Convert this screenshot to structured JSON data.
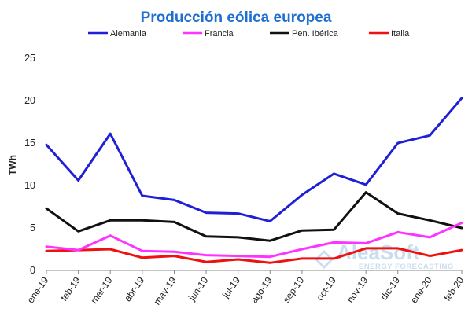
{
  "chart_data": {
    "type": "line",
    "title": "Producción eólica europea",
    "ylabel": "TWh",
    "xlabel": "",
    "ylim": [
      0,
      25
    ],
    "yticks": [
      0,
      5,
      10,
      15,
      20,
      25
    ],
    "grid": false,
    "legend_position": "top",
    "categories": [
      "ene-19",
      "feb-19",
      "mar-19",
      "abr-19",
      "may-19",
      "jun-19",
      "jul-19",
      "ago-19",
      "sep-19",
      "oct-19",
      "nov-19",
      "dic-19",
      "ene-20",
      "feb-20"
    ],
    "series": [
      {
        "name": "Alemania",
        "color": "#1f1fd6",
        "values": [
          14.8,
          10.6,
          16.1,
          8.8,
          8.3,
          6.8,
          6.7,
          5.8,
          8.9,
          11.4,
          10.1,
          15.0,
          15.9,
          20.3
        ]
      },
      {
        "name": "Francia",
        "color": "#ff33ff",
        "values": [
          2.8,
          2.4,
          4.1,
          2.3,
          2.2,
          1.8,
          1.7,
          1.6,
          2.5,
          3.3,
          3.2,
          4.5,
          3.9,
          5.6
        ]
      },
      {
        "name": "Pen. Ibérica",
        "color": "#111111",
        "values": [
          7.3,
          4.6,
          5.9,
          5.9,
          5.7,
          4.0,
          3.9,
          3.5,
          4.7,
          4.8,
          9.2,
          6.7,
          5.9,
          5.0
        ]
      },
      {
        "name": "Italia",
        "color": "#ee1111",
        "values": [
          2.3,
          2.4,
          2.5,
          1.5,
          1.7,
          1.0,
          1.3,
          0.9,
          1.4,
          1.4,
          2.6,
          2.6,
          1.7,
          2.4
        ]
      }
    ]
  },
  "colors": {
    "title": "#1f6fd0",
    "axis": "#888888",
    "watermark": "#c9ddef"
  },
  "watermark": {
    "brand": "AleaSoft",
    "tagline": "ENERGY FORECASTING"
  }
}
